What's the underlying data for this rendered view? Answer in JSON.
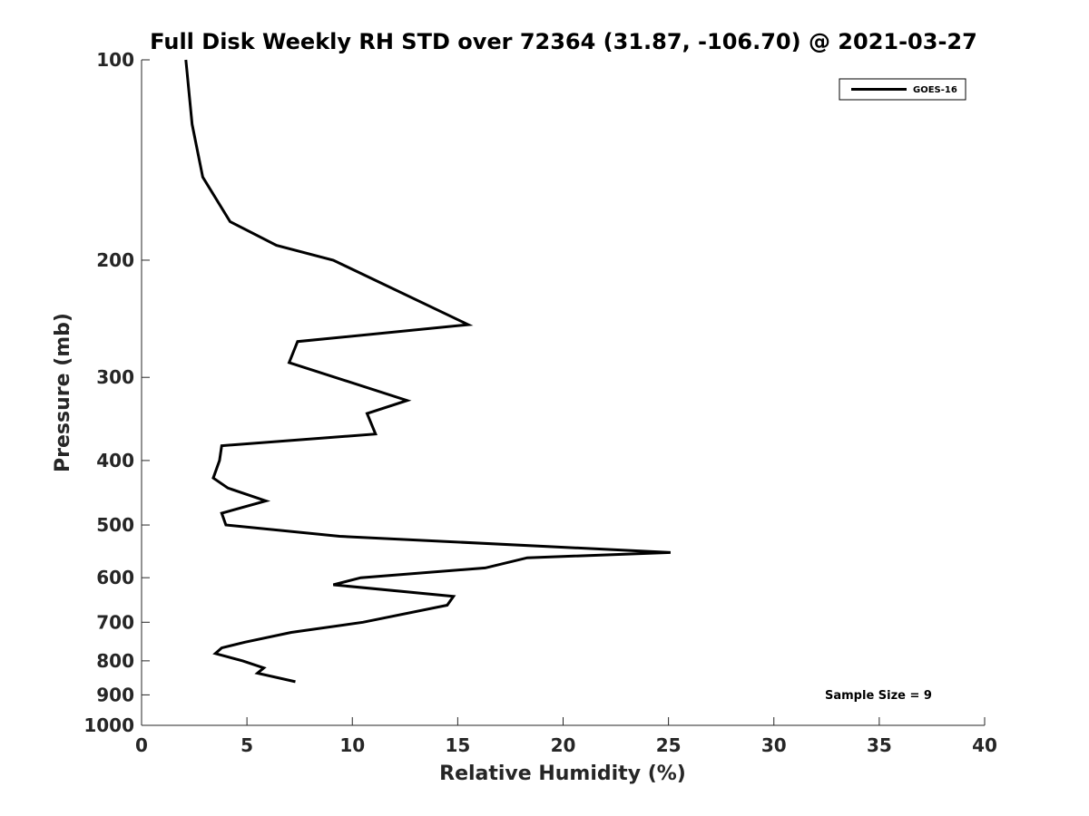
{
  "chart_data": {
    "type": "line",
    "title": "Full Disk Weekly RH STD over 72364 (31.87, -106.70) @ 2021-03-27",
    "xlabel": "Relative Humidity (%)",
    "ylabel": "Pressure (mb)",
    "xlim": [
      0,
      40
    ],
    "ylim": [
      100,
      1000
    ],
    "y_scale": "log",
    "y_reversed": true,
    "x_ticks": [
      0,
      5,
      10,
      15,
      20,
      25,
      30,
      35,
      40
    ],
    "x_tick_labels": [
      "0",
      "5",
      "10",
      "15",
      "20",
      "25",
      "30",
      "35",
      "40"
    ],
    "y_ticks": [
      100,
      200,
      300,
      400,
      500,
      600,
      700,
      800,
      900,
      1000
    ],
    "y_tick_labels": [
      "100",
      "200",
      "300",
      "400",
      "500",
      "600",
      "700",
      "800",
      "900",
      "1000"
    ],
    "grid": false,
    "legend_position": "top-right",
    "series": [
      {
        "name": "GOES-16",
        "color": "#000000",
        "x": [
          2.1,
          2.4,
          2.9,
          4.2,
          6.4,
          9.1,
          15.5,
          7.4,
          7.0,
          12.6,
          10.7,
          11.1,
          3.8,
          3.7,
          3.4,
          4.1,
          5.9,
          3.8,
          4.0,
          9.4,
          25.1,
          18.3,
          16.3,
          10.4,
          9.1,
          14.8,
          14.5,
          10.5,
          7.1,
          4.9,
          3.8,
          3.5,
          4.8,
          5.8,
          5.5,
          7.3
        ],
        "y": [
          100,
          125,
          150,
          175,
          190,
          200,
          250,
          265,
          285,
          325,
          340,
          365,
          380,
          400,
          425,
          440,
          460,
          480,
          500,
          520,
          550,
          560,
          580,
          600,
          615,
          640,
          660,
          700,
          725,
          750,
          765,
          780,
          800,
          820,
          835,
          860
        ]
      }
    ],
    "annotations": [
      "Sample Size = 9"
    ]
  }
}
